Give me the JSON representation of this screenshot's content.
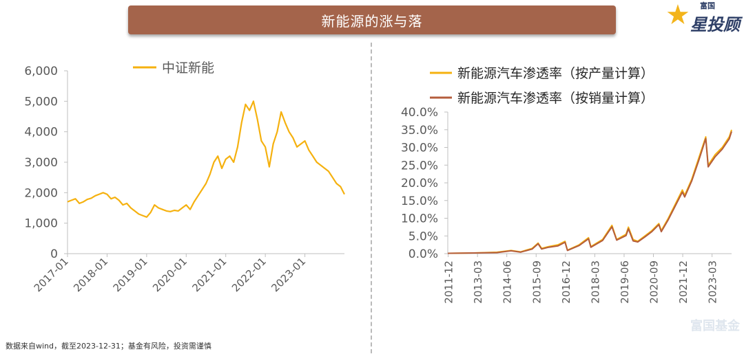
{
  "title": "新能源的涨与落",
  "logo": {
    "small_text": "富国",
    "big_text": "星投顾",
    "icon": "star-icon"
  },
  "footer": "数据来自wind，截至2023-12-31；基金有风险，投资需谨慎",
  "watermark": "富国基金",
  "colors": {
    "gold": "#f5b10f",
    "brown": "#b45d3c",
    "title_bg": "#a4644b",
    "axis": "#bfbfbf",
    "text": "#595959"
  },
  "chart_data": [
    {
      "type": "line",
      "title": "",
      "legend": [
        "中证新能"
      ],
      "ylim": [
        0,
        6000
      ],
      "yticks": [
        "0",
        "1,000",
        "2,000",
        "3,000",
        "4,000",
        "5,000",
        "6,000"
      ],
      "xticks": [
        "2017-01",
        "2018-01",
        "2019-01",
        "2020-01",
        "2021-01",
        "2022-01",
        "2023-01"
      ],
      "x_range": [
        2017.0,
        2024.0
      ],
      "series": [
        {
          "name": "中证新能",
          "x": [
            2017.0,
            2017.1,
            2017.2,
            2017.3,
            2017.4,
            2017.5,
            2017.6,
            2017.7,
            2017.8,
            2017.9,
            2018.0,
            2018.1,
            2018.2,
            2018.3,
            2018.4,
            2018.5,
            2018.6,
            2018.7,
            2018.8,
            2018.9,
            2019.0,
            2019.1,
            2019.2,
            2019.3,
            2019.4,
            2019.5,
            2019.6,
            2019.7,
            2019.8,
            2019.9,
            2020.0,
            2020.1,
            2020.2,
            2020.3,
            2020.4,
            2020.5,
            2020.6,
            2020.7,
            2020.8,
            2020.9,
            2021.0,
            2021.1,
            2021.2,
            2021.3,
            2021.4,
            2021.5,
            2021.6,
            2021.7,
            2021.8,
            2021.9,
            2022.0,
            2022.1,
            2022.2,
            2022.3,
            2022.4,
            2022.5,
            2022.6,
            2022.7,
            2022.8,
            2022.9,
            2023.0,
            2023.1,
            2023.2,
            2023.3,
            2023.4,
            2023.5,
            2023.6,
            2023.7,
            2023.8,
            2023.9,
            2024.0
          ],
          "values": [
            1700,
            1750,
            1800,
            1650,
            1700,
            1780,
            1820,
            1900,
            1950,
            2000,
            1950,
            1800,
            1850,
            1750,
            1600,
            1650,
            1500,
            1400,
            1300,
            1250,
            1200,
            1350,
            1600,
            1500,
            1450,
            1400,
            1380,
            1420,
            1400,
            1500,
            1600,
            1450,
            1700,
            1900,
            2100,
            2300,
            2600,
            3000,
            3200,
            2800,
            3100,
            3200,
            3000,
            3500,
            4300,
            4900,
            4700,
            5000,
            4400,
            3700,
            3500,
            2850,
            3600,
            4000,
            4650,
            4300,
            4000,
            3800,
            3500,
            3600,
            3700,
            3400,
            3200,
            3000,
            2900,
            2800,
            2700,
            2500,
            2300,
            2200,
            1950
          ]
        }
      ]
    },
    {
      "type": "line",
      "title": "",
      "legend": [
        "新能源汽车渗透率（按产量计算）",
        "新能源汽车渗透率（按销量计算）"
      ],
      "ylim": [
        0,
        40
      ],
      "yticks": [
        "0.0%",
        "5.0%",
        "10.0%",
        "15.0%",
        "20.0%",
        "25.0%",
        "30.0%",
        "35.0%",
        "40.0%"
      ],
      "xticks": [
        "2011-12",
        "2013-03",
        "2014-06",
        "2015-09",
        "2016-12",
        "2018-03",
        "2019-06",
        "2020-09",
        "2021-12",
        "2023-03"
      ],
      "x_range": [
        2011.9,
        2024.0
      ],
      "series": [
        {
          "name": "新能源汽车渗透率（按产量计算）",
          "x": [
            2011.9,
            2013.0,
            2014.0,
            2014.6,
            2015.0,
            2015.5,
            2015.75,
            2015.9,
            2016.2,
            2016.6,
            2016.9,
            2017.0,
            2017.5,
            2017.9,
            2018.0,
            2018.5,
            2018.9,
            2019.1,
            2019.5,
            2019.6,
            2019.8,
            2020.0,
            2020.3,
            2020.6,
            2020.9,
            2021.0,
            2021.3,
            2021.6,
            2021.9,
            2022.0,
            2022.3,
            2022.6,
            2022.9,
            2023.0,
            2023.3,
            2023.6,
            2023.9,
            2024.0
          ],
          "values": [
            0.1,
            0.2,
            0.4,
            0.9,
            0.5,
            1.5,
            3.0,
            1.5,
            2.0,
            2.5,
            3.5,
            1.0,
            2.5,
            4.5,
            2.0,
            4.0,
            8.0,
            4.0,
            5.5,
            7.5,
            4.0,
            3.5,
            5.0,
            6.5,
            8.5,
            6.5,
            10.0,
            14.0,
            18.0,
            16.5,
            21.0,
            27.0,
            33.0,
            25.0,
            28.0,
            30.0,
            33.0,
            35.0
          ]
        },
        {
          "name": "新能源汽车渗透率（按销量计算）",
          "x": [
            2011.9,
            2013.0,
            2014.0,
            2014.6,
            2015.0,
            2015.5,
            2015.75,
            2015.9,
            2016.2,
            2016.6,
            2016.9,
            2017.0,
            2017.5,
            2017.9,
            2018.0,
            2018.5,
            2018.9,
            2019.1,
            2019.5,
            2019.6,
            2019.8,
            2020.0,
            2020.3,
            2020.6,
            2020.9,
            2021.0,
            2021.3,
            2021.6,
            2021.9,
            2022.0,
            2022.3,
            2022.6,
            2022.9,
            2023.0,
            2023.3,
            2023.6,
            2023.9,
            2024.0
          ],
          "values": [
            0.1,
            0.2,
            0.3,
            0.8,
            0.4,
            1.3,
            2.8,
            1.3,
            1.8,
            2.2,
            3.2,
            0.9,
            2.3,
            4.2,
            1.8,
            3.7,
            7.6,
            3.8,
            5.1,
            7.0,
            3.6,
            3.3,
            4.7,
            6.2,
            8.2,
            6.2,
            9.6,
            13.5,
            17.4,
            16.0,
            20.5,
            26.3,
            32.5,
            24.5,
            27.4,
            29.5,
            32.4,
            34.5
          ]
        }
      ]
    }
  ]
}
